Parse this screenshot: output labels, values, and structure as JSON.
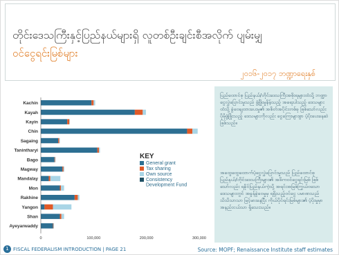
{
  "header": {
    "title_line1": "တိုင်းဒေသကြီးနှင့်ပြည်နယ်များရှိ လူတစ်ဦးချင်းစီအလိုက် ပျမ်းမျှ",
    "title_line2": "ဝင်ငွေရင်းမြစ်များ",
    "date": "၂၀၁၆-၂၀၁၇ ဘဏ္ဍာရေးနှစ်"
  },
  "panel": {
    "para1": "ပြည်ထောင်စု ပြည်နယ်/တိုင်းဒေသကြီးအစိုးရများထံသို့ ဘဏ္ဍာငွေလွှဲပြောင်းမှုသည် ဖွံ့ဖြိုးမှုနိမ့်သည့် အရေးပါသည့် ဒေသများထံသို့ ခွဲဝေချထားပေးမှု၏ အစိတ်အပိုင်းတစ်ခု ဖြစ်သော်လည်း ပိုမိုဖွံ့ဖြိုးသည့် ဒေသများကိုလည်း ငွေကြေးများစွာ ပံ့ပိုးပေးနေဆဲဖြစ်သည်။",
    "para2": "အထွေထွေထောက်ပံ့ငွေလွှဲပြောင်းမှုသည် ပြည်ထောင်စု ပြည်နယ်/တိုင်းဒေသကြီးများ၏ အဓိကဝင်ငွေရင်းမြစ် ဖြစ်သော်လည်း ရခိုင်ပြည်နယ်ကဲ့သို့ အရင်းအမြစ်ကြွယ်ဝသော ဒေသများတွင် အခွန်ခွဲဝေမှုမှ ရရှိသည့်ဝင်ငွေ ပမာဏသည် သိသိသာသာ မြင့်မားနေပြီး ကိုယ်ပိုင်ရင်းမြစ်များ၏ ပံ့ပိုးမှုမှာ အနည်းငယ်သာ ရှိသေးသည်။"
  },
  "footer": {
    "icon_text": "1",
    "left": "FISCAL FEDERALISM INTRODUCTION | PAGE 21",
    "right": "Source: MOPF; Renaissance Institute staff estimates"
  },
  "chart_data": {
    "type": "bar",
    "orientation": "horizontal",
    "stacked": true,
    "categories": [
      "Kachin",
      "Kayah",
      "Kayin",
      "Chin",
      "Sagaing",
      "Tanintharyi",
      "Bago",
      "Magway",
      "Mandalay",
      "Mon",
      "Rakhine",
      "Yangon",
      "Shan",
      "Ayeyarwaddy"
    ],
    "series": [
      {
        "name": "General grant",
        "color": "#2d6f92",
        "values": [
          96000,
          178000,
          50000,
          277000,
          33000,
          107000,
          26000,
          41000,
          15000,
          36000,
          64000,
          7000,
          36000,
          23000
        ]
      },
      {
        "name": "Tax sharing",
        "color": "#e05a28",
        "values": [
          4000,
          15000,
          4000,
          10000,
          2000,
          3000,
          1000,
          2000,
          3000,
          2000,
          6000,
          16000,
          3000,
          1000
        ]
      },
      {
        "name": "Own source",
        "color": "#a9d5e6",
        "values": [
          3000,
          6000,
          1000,
          10000,
          1000,
          2000,
          1000,
          1500,
          19000,
          6000,
          3000,
          35000,
          5000,
          1000
        ]
      },
      {
        "name": "Consistency Development Fund",
        "color": "#1f4f63",
        "values": [
          0,
          0,
          0,
          0,
          0,
          0,
          0,
          0,
          0,
          0,
          0,
          0,
          0,
          0
        ]
      }
    ],
    "xlim": [
      0,
      300000
    ],
    "x_ticks": [
      0,
      100000,
      200000,
      300000
    ],
    "x_tick_labels": [
      "0",
      "100,000",
      "200,000",
      "300,000"
    ],
    "grid": false,
    "legend": {
      "title": "KEY",
      "placement": "right"
    }
  }
}
